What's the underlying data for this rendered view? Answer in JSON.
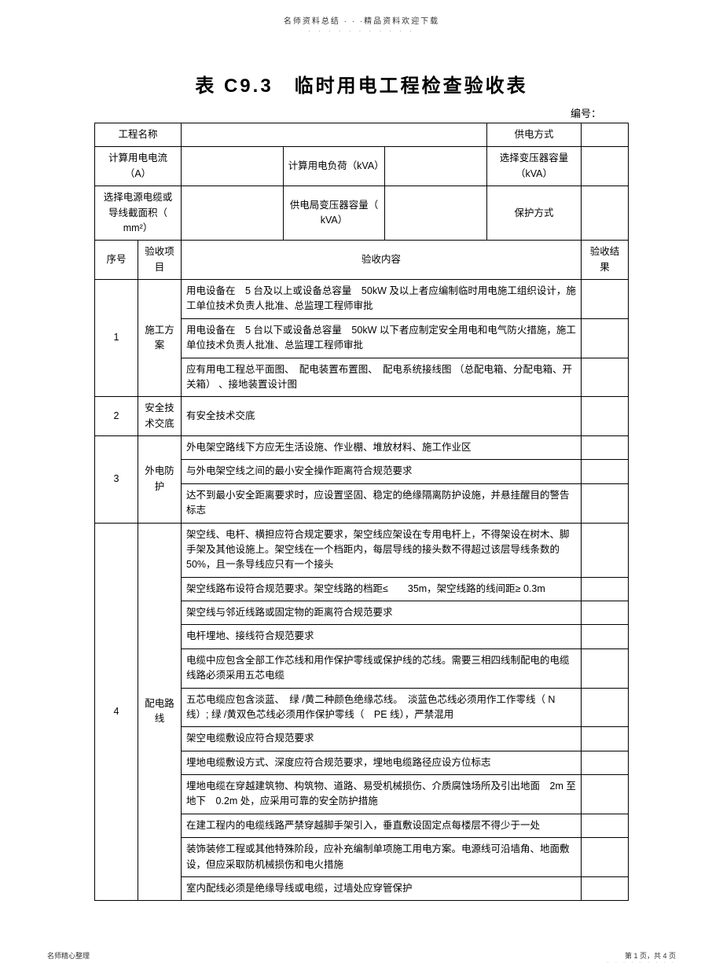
{
  "header": {
    "note": "名师资料总结 · · ·精品资料欢迎下载",
    "dots": "· · · · · · · · · · ·"
  },
  "title": "表 C9.3　临时用电工程检查验收表",
  "numberLabel": "编号：",
  "infoRows": {
    "r1": {
      "l": "工程名称",
      "r": "供电方式"
    },
    "r2": {
      "l": "计算用电电流（A）",
      "m": "计算用电负荷（kVA）",
      "r": "选择变压器容量（kVA）"
    },
    "r3": {
      "l": "选择电源电缆或导线截面积（ mm²）",
      "m": "供电局变压器容量（ kVA）",
      "r": "保护方式"
    }
  },
  "columns": {
    "seq": "序号",
    "item": "验收项目",
    "content": "验收内容",
    "result": "验收结果"
  },
  "rows": [
    {
      "seq": "1",
      "item": "施工方案",
      "contents": [
        "用电设备在　5 台及以上或设备总容量　50kW 及以上者应编制临时用电施工组织设计，施工单位技术负责人批准、总监理工程师审批",
        "用电设备在　5 台以下或设备总容量　50kW 以下者应制定安全用电和电气防火措施，施工单位技术负责人批准、总监理工程师审批",
        "应有用电工程总平面图、　配电装置布置图、　配电系统接线图 （总配电箱、分配电箱、开关箱） 、接地装置设计图"
      ]
    },
    {
      "seq": "2",
      "item": "安全技术交底",
      "contents": [
        "有安全技术交底"
      ]
    },
    {
      "seq": "3",
      "item": "外电防护",
      "contents": [
        "外电架空路线下方应无生活设施、作业棚、堆放材料、施工作业区",
        "与外电架空线之间的最小安全操作距离符合规范要求",
        "达不到最小安全距离要求时，应设置坚固、稳定的绝缘隔离防护设施，并悬挂醒目的警告标志"
      ]
    },
    {
      "seq": "4",
      "item": "配电路线",
      "contents": [
        "架空线、电杆、横担应符合规定要求，架空线应架设在专用电杆上，不得架设在树木、脚手架及其他设施上。架空线在一个档距内，每层导线的接头数不得超过该层导线条数的　50%，且一条导线应只有一个接头",
        "架空线路布设符合规范要求。架空线路的档距≤　　35m，架空线路的线间距≥ 0.3m",
        "架空线与邻近线路或固定物的距离符合规范要求",
        "电杆埋地、接线符合规范要求",
        "电缆中应包含全部工作芯线和用作保护零线或保护线的芯线。需要三相四线制配电的电缆线路必须采用五芯电缆",
        "五芯电缆应包含淡蓝、　绿 /黄二种颜色绝缘芯线。　淡蓝色芯线必须用作工作零线（ N 线）; 绿 /黄双色芯线必须用作保护零线（　PE 线），严禁混用",
        "架空电缆敷设应符合规范要求",
        "埋地电缆敷设方式、深度应符合规范要求，埋地电缆路径应设方位标志",
        "埋地电缆在穿越建筑物、构筑物、道路、易受机械损伤、介质腐蚀场所及引出地面　2m 至地下　0.2m 处，应采用可靠的安全防护措施",
        "在建工程内的电缆线路严禁穿越脚手架引入，垂直敷设固定点每楼层不得少于一处",
        "装饰装修工程或其他特殊阶段，应补充编制单项施工用电方案。电源线可沿墙角、地面敷设，但应采取防机械损伤和电火措施",
        "室内配线必须是绝缘导线或电缆，过墙处应穿管保护"
      ]
    }
  ],
  "footer": {
    "left": "名师精心整理",
    "right": "第 1 页，共 4 页",
    "dots": "· · · · · · · · ·"
  }
}
